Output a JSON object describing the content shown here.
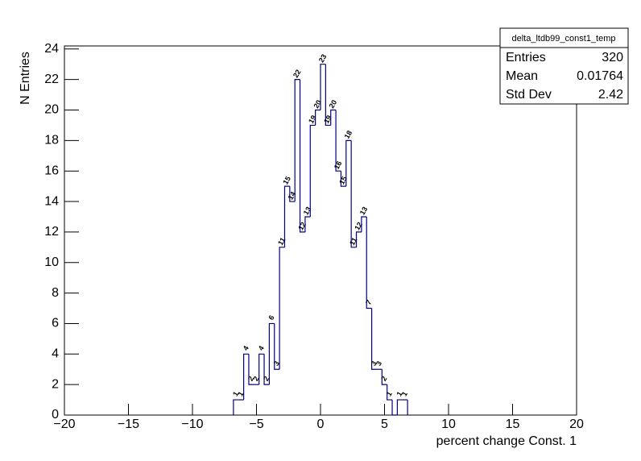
{
  "chart_data": {
    "type": "histogram",
    "xlabel": "percent change Const. 1",
    "ylabel": "N Entries",
    "bins": [
      -6.8,
      -6.4,
      -6.0,
      -5.6,
      -5.2,
      -4.8,
      -4.4,
      -4.0,
      -3.6,
      -3.2,
      -2.8,
      -2.4,
      -2.0,
      -1.6,
      -1.2,
      -0.8,
      -0.4,
      0,
      0.4,
      0.8,
      1.2,
      1.6,
      2.0,
      2.4,
      2.8,
      3.2,
      3.6,
      4.0,
      4.4,
      4.8,
      5.2,
      5.6,
      6.0,
      6.4,
      6.8
    ],
    "values": [
      1,
      1,
      4,
      2,
      2,
      4,
      2,
      6,
      3,
      11,
      15,
      14,
      22,
      12,
      13,
      19,
      20,
      23,
      19,
      20,
      16,
      15,
      18,
      11,
      12,
      13,
      7,
      3,
      3,
      2,
      1,
      0,
      1,
      1
    ],
    "color": "#000080",
    "xlim": [
      -20,
      20
    ],
    "ylim": [
      0,
      24.2
    ],
    "xticks": [
      {
        "value": -20,
        "label": "−20"
      },
      {
        "value": -15,
        "label": "−15"
      },
      {
        "value": -10,
        "label": "−10"
      },
      {
        "value": -5,
        "label": "−5"
      },
      0,
      5,
      10,
      15,
      20
    ],
    "yticks": [
      0,
      2,
      4,
      6,
      8,
      10,
      12,
      14,
      16,
      18,
      20,
      22,
      24
    ],
    "stats": {
      "title": "delta_ltdb99_const1_temp",
      "rows": [
        {
          "label": "Entries",
          "value": 320
        },
        {
          "label": "Mean",
          "value": 0.01764
        },
        {
          "label": "Std Dev",
          "value": 2.42
        }
      ]
    }
  }
}
